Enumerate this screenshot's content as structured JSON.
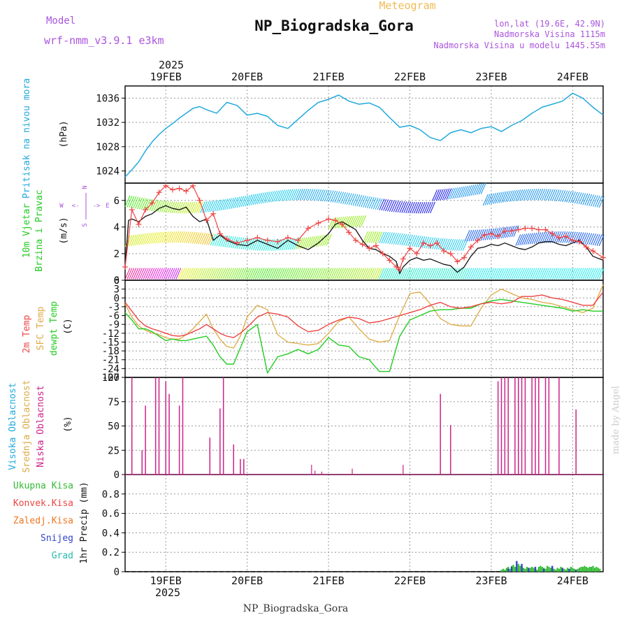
{
  "header": {
    "subtitle": "Meteogram",
    "title": "NP_Biogradska_Gora",
    "model_label": "Model",
    "model_name": "wrf-nmm_v3.9.1 e3km",
    "lonlat": "lon,lat (19.6E, 42.9N)",
    "elevation": "Nadmorska Visina 1115m",
    "model_elevation": "Nadmorska Visina u modelu 1445.55m",
    "year_top": "2025",
    "year_bottom": "2025",
    "footer_station": "NP_Biogradska_Gora",
    "watermark": "made by Angel"
  },
  "colors": {
    "pressure": "#22aadd",
    "temp": "#ee4444",
    "sfc": "#ddaa44",
    "dew": "#22cc22",
    "wind_speed": "#111111",
    "gust": "#ee4444",
    "cloud": "#cc2288",
    "precip_total": "#33bb33",
    "precip_snow": "#3344cc",
    "grid": "#999999",
    "model_text": "#aa55dd",
    "subtitle_text": "#eebb55"
  },
  "axis": {
    "day_labels": [
      "19FEB",
      "20FEB",
      "21FEB",
      "22FEB",
      "23FEB",
      "24FEB"
    ],
    "x_range_hours": [
      0,
      141
    ]
  },
  "panels": {
    "pressure": {
      "labels": [
        "Pritisak na nivou mora"
      ],
      "unit": "(hPa)",
      "ticks": [
        "1024",
        "1028",
        "1032",
        "1036"
      ]
    },
    "wind": {
      "labels": [
        "10m Vjetar",
        "Brzina i Pravac"
      ],
      "unit": "(m/s)",
      "ticks": [
        "0",
        "2",
        "4",
        "6"
      ],
      "compass": {
        "north": "N",
        "west": "W",
        "east": "E",
        "south": "S",
        "left_arrow": "<-",
        "right_arrow": "->"
      }
    },
    "temperature": {
      "labels": [
        "2m Temp",
        "SFC Temp",
        "dewpt Temp"
      ],
      "unit": "(C)",
      "ticks": [
        "-27",
        "-24",
        "-21",
        "-18",
        "-15",
        "-12",
        "-9",
        "-6",
        "-3",
        "0",
        "3",
        "6"
      ]
    },
    "cloud": {
      "labels": [
        "Visoka Oblacnost",
        "Srednja Oblacnost",
        "Niska Oblacnost"
      ],
      "unit": "(%)",
      "ticks": [
        "0",
        "25",
        "50",
        "75",
        "100"
      ]
    },
    "precip": {
      "labels": [
        "Ukupna Kisa",
        "Konvek.Kisa",
        "Zaledj.Kisa",
        "Snijeg",
        "Grad"
      ],
      "unit": "1hr Precip (mm)",
      "ticks": [
        "0",
        "0.2",
        "0.4",
        "0.6",
        "0.8"
      ]
    }
  },
  "chart_data": {
    "type": "line",
    "title": "Meteogram NP_Biogradska_Gora",
    "x_unit": "hours since 2025-02-18 12:00",
    "pressure_hPa": {
      "x": [
        0,
        2,
        4,
        6,
        8,
        10,
        12,
        14,
        16,
        18,
        20,
        22,
        24,
        27,
        30,
        33,
        36,
        39,
        42,
        45,
        48,
        51,
        54,
        57,
        60,
        63,
        66,
        69,
        72,
        75,
        78,
        81,
        84,
        87,
        90,
        93,
        96,
        99,
        102,
        105,
        108,
        111,
        114,
        117,
        120,
        123,
        126,
        129,
        132,
        135,
        138,
        141
      ],
      "values": [
        1023.0,
        1024.2,
        1025.5,
        1027.3,
        1028.8,
        1030.0,
        1031.0,
        1031.8,
        1032.7,
        1033.5,
        1034.3,
        1034.6,
        1034.1,
        1033.5,
        1035.3,
        1034.8,
        1033.2,
        1033.5,
        1033.0,
        1031.5,
        1031.0,
        1032.5,
        1034.0,
        1035.3,
        1035.8,
        1036.5,
        1035.5,
        1035.0,
        1035.2,
        1034.5,
        1032.8,
        1031.2,
        1031.5,
        1030.8,
        1029.5,
        1029.0,
        1030.3,
        1030.8,
        1030.3,
        1031.0,
        1031.3,
        1030.5,
        1031.5,
        1032.3,
        1033.5,
        1034.5,
        1035.0,
        1035.5,
        1036.8,
        1036.0,
        1034.5,
        1033.2
      ]
    },
    "wind_ms": {
      "x": [
        0,
        1,
        2,
        4,
        6,
        8,
        10,
        12,
        14,
        16,
        18,
        20,
        22,
        24,
        26,
        28,
        30,
        33,
        36,
        39,
        42,
        45,
        48,
        51,
        54,
        57,
        60,
        62,
        64,
        66,
        68,
        70,
        72,
        74,
        76,
        78,
        80,
        81,
        82,
        84,
        86,
        88,
        90,
        92,
        94,
        96,
        98,
        100,
        102,
        104,
        106,
        108,
        110,
        112,
        114,
        116,
        118,
        120,
        122,
        124,
        126,
        128,
        130,
        132,
        134,
        136,
        138,
        141
      ],
      "values": [
        1.0,
        4.5,
        4.6,
        4.4,
        4.8,
        5.0,
        5.4,
        5.6,
        5.4,
        5.3,
        5.5,
        4.8,
        4.4,
        4.6,
        3.0,
        3.4,
        3.0,
        2.7,
        2.6,
        3.0,
        2.7,
        2.4,
        3.0,
        2.6,
        2.3,
        2.8,
        3.5,
        4.2,
        4.4,
        4.1,
        3.8,
        3.0,
        2.4,
        2.3,
        2.0,
        1.8,
        1.4,
        0.5,
        1.0,
        1.5,
        1.7,
        1.5,
        1.6,
        1.4,
        1.2,
        1.1,
        0.6,
        1.0,
        1.8,
        2.4,
        2.5,
        2.7,
        2.6,
        2.8,
        2.6,
        2.4,
        2.3,
        2.5,
        2.8,
        2.9,
        2.9,
        2.7,
        2.6,
        2.8,
        3.0,
        2.5,
        1.8,
        1.5
      ]
    },
    "gust_ms": {
      "x": [
        0,
        2,
        4,
        6,
        8,
        10,
        12,
        14,
        16,
        18,
        20,
        22,
        24,
        26,
        28,
        30,
        33,
        36,
        39,
        42,
        45,
        48,
        51,
        54,
        57,
        60,
        62,
        64,
        66,
        68,
        70,
        72,
        74,
        76,
        78,
        80,
        81,
        82,
        84,
        86,
        88,
        90,
        92,
        94,
        96,
        98,
        100,
        102,
        104,
        106,
        108,
        110,
        112,
        114,
        116,
        118,
        120,
        122,
        124,
        126,
        128,
        130,
        132,
        134,
        136,
        138,
        141
      ],
      "values": [
        1.0,
        5.3,
        4.2,
        5.3,
        5.8,
        6.6,
        7.1,
        6.8,
        6.9,
        6.7,
        7.1,
        6.0,
        4.5,
        5.0,
        3.5,
        3.1,
        2.8,
        3.0,
        3.2,
        3.0,
        2.9,
        3.2,
        3.0,
        3.9,
        4.3,
        4.6,
        4.5,
        4.2,
        3.6,
        3.0,
        2.7,
        2.4,
        2.6,
        2.0,
        1.5,
        1.0,
        0.8,
        1.6,
        2.4,
        2.0,
        2.8,
        2.6,
        2.8,
        2.2,
        2.0,
        1.4,
        1.7,
        2.5,
        3.0,
        3.4,
        3.5,
        3.3,
        3.7,
        3.7,
        3.8,
        3.9,
        3.9,
        3.8,
        3.8,
        3.5,
        3.2,
        3.3,
        3.0,
        2.9,
        2.5,
        2.2,
        1.7
      ]
    },
    "temp_2m_C": {
      "x": [
        0,
        2,
        4,
        6,
        8,
        10,
        12,
        14,
        16,
        18,
        20,
        22,
        24,
        26,
        28,
        30,
        32,
        34,
        36,
        39,
        42,
        45,
        48,
        51,
        54,
        57,
        60,
        63,
        66,
        69,
        72,
        75,
        78,
        81,
        84,
        87,
        90,
        93,
        96,
        99,
        102,
        105,
        108,
        111,
        114,
        117,
        120,
        123,
        126,
        129,
        132,
        135,
        138,
        141
      ],
      "values": [
        -1.5,
        -4.5,
        -7.5,
        -9.5,
        -10.5,
        -11.2,
        -12.0,
        -12.8,
        -13.0,
        -12.5,
        -11.5,
        -10.5,
        -9.0,
        -10.5,
        -12.0,
        -13.0,
        -13.5,
        -12.0,
        -10.0,
        -6.5,
        -5.0,
        -5.5,
        -6.5,
        -9.5,
        -11.5,
        -11.0,
        -9.0,
        -7.5,
        -6.5,
        -7.0,
        -8.5,
        -8.0,
        -7.0,
        -6.0,
        -5.0,
        -4.0,
        -2.5,
        -1.5,
        -3.0,
        -3.5,
        -3.0,
        -2.0,
        -1.5,
        -2.0,
        -1.5,
        0.5,
        0.5,
        1.0,
        0.0,
        -0.5,
        -1.5,
        -2.5,
        -2.5,
        2.0
      ]
    },
    "temp_sfc_C": {
      "x": [
        0,
        2,
        4,
        6,
        8,
        10,
        12,
        14,
        16,
        18,
        20,
        22,
        24,
        26,
        28,
        30,
        32,
        34,
        36,
        39,
        42,
        45,
        48,
        51,
        54,
        57,
        60,
        63,
        66,
        69,
        72,
        75,
        78,
        81,
        84,
        87,
        90,
        93,
        96,
        99,
        102,
        105,
        108,
        111,
        114,
        117,
        120,
        123,
        126,
        129,
        132,
        135,
        138,
        141
      ],
      "values": [
        -2.0,
        -6.5,
        -9.5,
        -11.0,
        -12.0,
        -12.5,
        -13.5,
        -14.0,
        -14.0,
        -12.5,
        -10.5,
        -8.0,
        -5.5,
        -10.5,
        -14.0,
        -16.5,
        -17.0,
        -13.0,
        -6.5,
        -2.5,
        -4.0,
        -12.5,
        -15.0,
        -15.5,
        -16.0,
        -15.5,
        -12.0,
        -8.0,
        -6.5,
        -10.5,
        -14.0,
        -15.0,
        -14.5,
        -6.0,
        1.5,
        2.0,
        -2.0,
        -7.0,
        -9.0,
        -9.5,
        -9.5,
        -3.5,
        1.0,
        3.0,
        1.5,
        0.0,
        -0.5,
        -1.5,
        -2.0,
        -3.0,
        -4.0,
        -5.0,
        -3.5,
        4.5
      ]
    },
    "dewpt_C": {
      "x": [
        0,
        2,
        4,
        6,
        8,
        10,
        12,
        14,
        16,
        18,
        20,
        22,
        24,
        26,
        28,
        30,
        32,
        34,
        36,
        39,
        42,
        45,
        48,
        51,
        54,
        57,
        60,
        63,
        66,
        69,
        72,
        75,
        78,
        81,
        84,
        87,
        90,
        93,
        96,
        99,
        102,
        105,
        108,
        111,
        114,
        117,
        120,
        123,
        126,
        129,
        132,
        135,
        138,
        141
      ],
      "values": [
        -5.0,
        -7.5,
        -10.5,
        -10.5,
        -11.5,
        -13.0,
        -14.5,
        -14.0,
        -14.5,
        -14.5,
        -14.0,
        -13.5,
        -13.0,
        -16.0,
        -20.0,
        -22.5,
        -22.5,
        -17.0,
        -11.5,
        -9.0,
        -25.5,
        -20.0,
        -19.0,
        -17.5,
        -19.0,
        -17.5,
        -13.5,
        -16.0,
        -16.5,
        -20.0,
        -21.0,
        -25.0,
        -25.0,
        -13.0,
        -7.5,
        -6.0,
        -4.5,
        -4.0,
        -4.0,
        -3.5,
        -3.5,
        -2.0,
        -1.0,
        -0.5,
        -1.0,
        -1.5,
        -2.0,
        -2.5,
        -3.0,
        -3.5,
        -4.5,
        -4.0,
        -4.5,
        -4.5
      ]
    },
    "low_cloud_pct": {
      "x": [
        2,
        5,
        6,
        9,
        10,
        12,
        13,
        16,
        17,
        25,
        28,
        29,
        32,
        34,
        35,
        93,
        96,
        110,
        111,
        112,
        113,
        115,
        116,
        117,
        118,
        120,
        121,
        122,
        124,
        125,
        128,
        133
      ],
      "values": [
        100,
        25,
        71,
        100,
        100,
        96,
        83,
        71,
        100,
        38,
        68,
        100,
        31,
        16,
        16,
        83,
        51,
        96,
        100,
        100,
        100,
        100,
        100,
        100,
        100,
        100,
        100,
        100,
        100,
        100,
        100,
        67
      ]
    },
    "mid_cloud_pct": {
      "x": [
        55,
        56,
        58,
        67,
        82
      ],
      "values": [
        10,
        4,
        3,
        6,
        10
      ]
    },
    "precip_total_mm": {
      "x": [
        111,
        111.5,
        112,
        112.5,
        113,
        113.5,
        114,
        114.5,
        115,
        115.5,
        116,
        116.5,
        117,
        117.5,
        118,
        118.5,
        119,
        119.5,
        120,
        120.5,
        121,
        121.5,
        122,
        122.5,
        123,
        123.5,
        124,
        124.5,
        125,
        125.5,
        126,
        126.5,
        127,
        127.5,
        128,
        128.5,
        129,
        129.5,
        130,
        130.5,
        131,
        131.5,
        132,
        132.5,
        133,
        133.5,
        134,
        134.5,
        135,
        135.5,
        136,
        136.5,
        137,
        137.5,
        138,
        138.5,
        139,
        139.5,
        140
      ],
      "values": [
        0.02,
        0.03,
        0.02,
        0.04,
        0.05,
        0.03,
        0.06,
        0.07,
        0.05,
        0.04,
        0.08,
        0.06,
        0.05,
        0.04,
        0.03,
        0.05,
        0.03,
        0.04,
        0.05,
        0.04,
        0.03,
        0.02,
        0.05,
        0.06,
        0.05,
        0.04,
        0.03,
        0.06,
        0.05,
        0.04,
        0.05,
        0.03,
        0.02,
        0.04,
        0.03,
        0.05,
        0.04,
        0.03,
        0.02,
        0.04,
        0.03,
        0.05,
        0.04,
        0.03,
        0.02,
        0.03,
        0.04,
        0.05,
        0.05,
        0.06,
        0.05,
        0.04,
        0.05,
        0.05,
        0.06,
        0.04,
        0.05,
        0.04,
        0.03
      ]
    },
    "precip_snow_mm": {
      "x": [
        113,
        114,
        115.5,
        117,
        119,
        121,
        123.5,
        126,
        129,
        131,
        133
      ],
      "values": [
        0.03,
        0.05,
        0.11,
        0.08,
        0.04,
        0.05,
        0.03,
        0.06,
        0.04,
        0.03,
        0.02
      ]
    },
    "panel_ranges": {
      "pressure": [
        1022,
        1038
      ],
      "wind": [
        0,
        7.3
      ],
      "temperature": [
        -27,
        6
      ],
      "cloud": [
        0,
        100
      ],
      "precip": [
        0,
        1.0
      ]
    }
  }
}
